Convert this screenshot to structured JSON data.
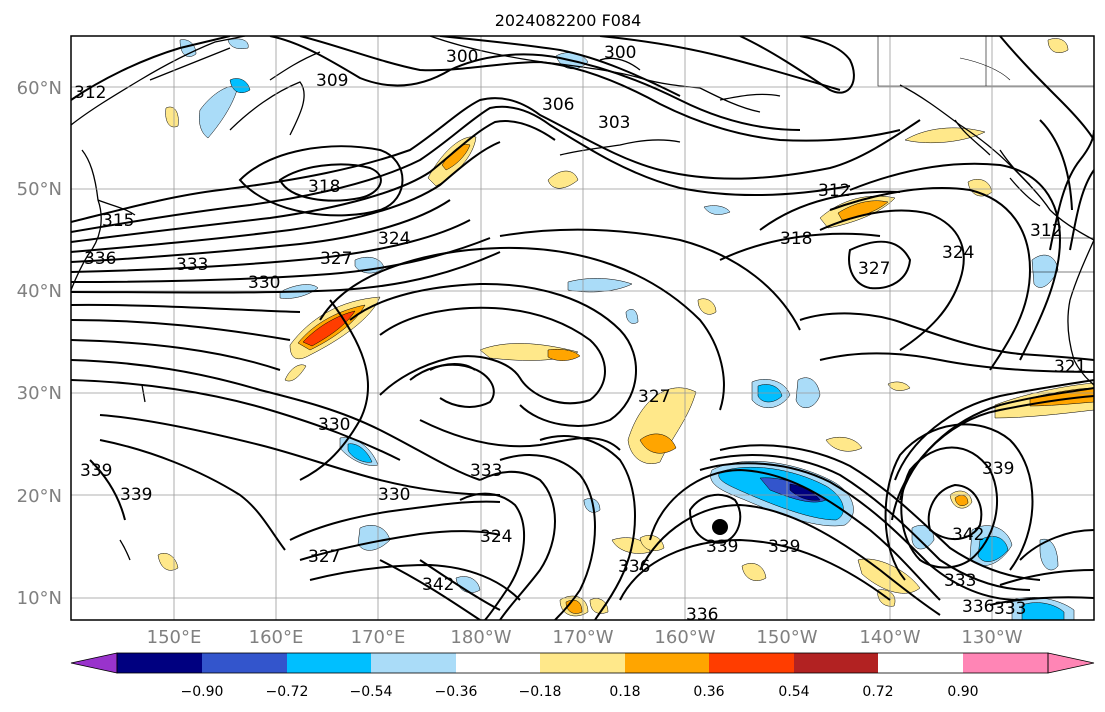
{
  "title": "2024082200 F084",
  "lat_labels": [
    "10°N",
    "20°N",
    "30°N",
    "40°N",
    "50°N",
    "60°N"
  ],
  "lon_labels": [
    "150°E",
    "160°E",
    "170°E",
    "180°W",
    "170°W",
    "160°W",
    "150°W",
    "140°W",
    "130°W"
  ],
  "contour_labels": [
    "300",
    "300",
    "312",
    "309",
    "306",
    "303",
    "318",
    "315",
    "336",
    "333",
    "330",
    "327",
    "324",
    "312",
    "318",
    "327",
    "324",
    "312",
    "321",
    "330",
    "339",
    "339",
    "333",
    "330",
    "324",
    "327",
    "336",
    "342",
    "339",
    "339",
    "339",
    "342",
    "333",
    "336",
    "333",
    "336",
    "327"
  ],
  "colorbar": {
    "tick_labels": [
      "−0.90",
      "−0.72",
      "−0.54",
      "−0.36",
      "−0.18",
      "0.18",
      "0.36",
      "0.54",
      "0.72",
      "0.90"
    ],
    "colors": [
      "#9933cc",
      "#000080",
      "#3355cc",
      "#00bfff",
      "#aadcf8",
      "#ffffff",
      "#ffe88a",
      "#ffa500",
      "#ff3d00",
      "#b22222",
      "#ff85b5"
    ]
  },
  "marker": {
    "type": "filled-circle",
    "color": "#000000"
  }
}
